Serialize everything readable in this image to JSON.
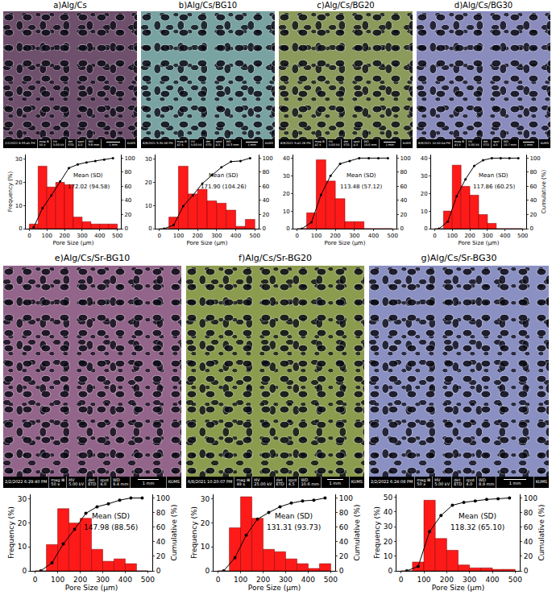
{
  "sem_header": [
    "mag ⊞",
    "HV",
    "det",
    "spot",
    "WD"
  ],
  "panels": [
    {
      "title": "a)Alg/Cs",
      "color": "#6e4f6c",
      "sem": {
        "timestamp": "2/2/2022 6:33:45 PM",
        "values": [
          "50 x",
          "5.00 kV",
          "ETD",
          "4.0",
          "9.8 mm"
        ],
        "scale": "1 mm",
        "org": "KUMS"
      }
    },
    {
      "title": "b)Alg/Cs/BG10",
      "color": "#79a3a3",
      "sem": {
        "timestamp": "6/8/2021 9:35:58 PM",
        "values": [
          "42 x",
          "5.00 kV",
          "ETD",
          "4.5",
          "10.3 mm"
        ],
        "scale": "1 mm",
        "org": "KUMS"
      }
    },
    {
      "title": "c)Alg/Cs/BG20",
      "color": "#8c9a5c",
      "sem": {
        "timestamp": "6/8/2021 9:42:26 PM",
        "values": [
          "42 x",
          "5.00 kV",
          "ETD",
          "4.5",
          "10.0 mm"
        ],
        "scale": "1 mm",
        "org": "KUMS"
      }
    },
    {
      "title": "d)Alg/Cs/BG30",
      "color": "#8a8cbd",
      "sem": {
        "timestamp": "6/8/2021 10:50:04 PM",
        "values": [
          "41 x",
          "5.00 kV",
          "ETD",
          "4.5",
          "10.7 mm"
        ],
        "scale": "1 mm",
        "org": "KUMS"
      }
    },
    {
      "title": "e)Alg/Cs/Sr-BG10",
      "color": "#93658a",
      "sem": {
        "timestamp": "2/2/2022 6:29:40 PM",
        "values": [
          "50 x",
          "5.00 kV",
          "ETD",
          "4.0",
          "9.4 mm"
        ],
        "scale": "1 mm",
        "org": "KUMS"
      }
    },
    {
      "title": "f)Alg/Cs/Sr-BG20",
      "color": "#8c9c4e",
      "sem": {
        "timestamp": "6/8/2021 10:20:07 PM",
        "values": [
          "49 x",
          "25.00 kV",
          "ETD",
          "4.5",
          "10.6 mm"
        ],
        "scale": "1 mm",
        "org": "KUMS"
      }
    },
    {
      "title": "g)Alg/Cs/Sr-BG30",
      "color": "#8a90c2",
      "sem": {
        "timestamp": "2/2/2022 6:24:08 PM",
        "values": [
          "50 x",
          "5.00 kV",
          "ETD",
          "4.0",
          "8.9 mm"
        ],
        "scale": "1 mm",
        "org": "KUMS"
      }
    }
  ],
  "chart_data": [
    {
      "type": "histogram",
      "bins": [
        0,
        50,
        100,
        150,
        200,
        250,
        300,
        350,
        400,
        450,
        500
      ],
      "values": [
        2,
        27,
        18,
        20,
        19,
        5,
        3,
        2,
        2,
        2
      ],
      "color": "#ff1a1a",
      "cumulative": {
        "type": "line",
        "axis": "y2",
        "marker": "circle",
        "color": "#000000",
        "values": [
          2,
          29,
          47,
          67,
          86,
          91,
          94,
          96,
          98,
          100
        ]
      },
      "xlabel": "Pore Size (µm)",
      "ylabel": "Frequency (%)",
      "xlim": [
        -20,
        520
      ],
      "xticks": [
        0,
        100,
        200,
        300,
        400,
        500
      ],
      "ylim": [
        0,
        32
      ],
      "yticks": [
        0,
        10,
        20,
        30
      ],
      "y2lim": [
        0,
        105
      ],
      "y2ticks": [
        0,
        20,
        40,
        60,
        80,
        100
      ],
      "annotations": [
        "Mean (SD)",
        "172.02 (94.58)"
      ]
    },
    {
      "type": "histogram",
      "bins": [
        0,
        50,
        100,
        150,
        200,
        250,
        300,
        350,
        400,
        450,
        500
      ],
      "values": [
        0,
        5,
        27,
        15,
        17,
        12,
        11,
        8,
        1,
        4
      ],
      "color": "#ff1a1a",
      "cumulative": {
        "type": "line",
        "axis": "y2",
        "marker": "circle",
        "color": "#000000",
        "values": [
          0,
          5,
          32,
          47,
          64,
          76,
          87,
          95,
          96,
          100
        ]
      },
      "xlabel": "Pore Size (µm)",
      "xlim": [
        -20,
        520
      ],
      "xticks": [
        0,
        100,
        200,
        300,
        400,
        500
      ],
      "ylim": [
        0,
        32
      ],
      "yticks": [
        0,
        10,
        20,
        30
      ],
      "y2lim": [
        0,
        105
      ],
      "y2ticks": [
        0,
        20,
        40,
        60,
        80,
        100
      ],
      "annotations": [
        "Mean (SD)",
        "171.90 (104.26)"
      ]
    },
    {
      "type": "histogram",
      "bins": [
        0,
        50,
        100,
        150,
        200,
        250,
        300,
        350,
        400,
        450,
        500
      ],
      "values": [
        0,
        9,
        39,
        27,
        17,
        4,
        4,
        0,
        0,
        0
      ],
      "color": "#ff1a1a",
      "cumulative": {
        "type": "line",
        "axis": "y2",
        "marker": "circle",
        "color": "#000000",
        "values": [
          0,
          9,
          48,
          75,
          92,
          96,
          100,
          100,
          100,
          100
        ]
      },
      "xlabel": "Pore Size (µm)",
      "xlim": [
        -20,
        520
      ],
      "xticks": [
        0,
        100,
        200,
        300,
        400,
        500
      ],
      "ylim": [
        0,
        42
      ],
      "yticks": [
        0,
        10,
        20,
        30,
        40
      ],
      "y2lim": [
        0,
        105
      ],
      "y2ticks": [
        0,
        20,
        40,
        60,
        80,
        100
      ],
      "annotations": [
        "Mean (SD)",
        "113.48 (57.12)"
      ]
    },
    {
      "type": "histogram",
      "bins": [
        0,
        50,
        100,
        150,
        200,
        250,
        300,
        350,
        400,
        450,
        500
      ],
      "values": [
        0,
        10,
        36,
        24,
        19,
        8,
        3,
        0,
        0,
        0
      ],
      "color": "#ff1a1a",
      "cumulative": {
        "type": "line",
        "axis": "y2",
        "marker": "circle",
        "color": "#000000",
        "values": [
          0,
          10,
          46,
          70,
          89,
          97,
          100,
          100,
          100,
          100
        ]
      },
      "xlabel": "Pore Size (µm)",
      "y2label": "Cumulative (%)",
      "xlim": [
        -20,
        520
      ],
      "xticks": [
        0,
        100,
        200,
        300,
        400,
        500
      ],
      "ylim": [
        0,
        42
      ],
      "yticks": [
        0,
        10,
        20,
        30,
        40
      ],
      "y2lim": [
        0,
        105
      ],
      "y2ticks": [
        0,
        20,
        40,
        60,
        80,
        100
      ],
      "annotations": [
        "Mean (SD)",
        "117.86 (60.25)"
      ]
    },
    {
      "type": "histogram",
      "bins": [
        0,
        50,
        100,
        150,
        200,
        250,
        300,
        350,
        400,
        450,
        500
      ],
      "values": [
        0,
        11,
        26,
        20,
        22,
        9,
        4,
        5,
        3,
        0
      ],
      "color": "#ff1a1a",
      "cumulative": {
        "type": "line",
        "axis": "y2",
        "marker": "circle",
        "color": "#000000",
        "values": [
          0,
          11,
          37,
          57,
          79,
          88,
          92,
          97,
          100,
          100
        ]
      },
      "xlabel": "Pore Size (µm)",
      "ylabel": "Frequency (%)",
      "y2label": "Cumulative (%)",
      "xlim": [
        -20,
        520
      ],
      "xticks": [
        0,
        100,
        200,
        300,
        400,
        500
      ],
      "ylim": [
        0,
        32
      ],
      "yticks": [
        0,
        10,
        20,
        30
      ],
      "y2lim": [
        0,
        105
      ],
      "y2ticks": [
        0,
        20,
        40,
        60,
        80,
        100
      ],
      "annotations": [
        "Mean (SD)",
        "147.98 (88.56)"
      ]
    },
    {
      "type": "histogram",
      "bins": [
        0,
        50,
        100,
        150,
        200,
        250,
        300,
        350,
        400,
        450,
        500
      ],
      "values": [
        0,
        18,
        31,
        22,
        9,
        8,
        5,
        3,
        1,
        3
      ],
      "color": "#ff1a1a",
      "cumulative": {
        "type": "line",
        "axis": "y2",
        "marker": "circle",
        "color": "#000000",
        "values": [
          0,
          18,
          49,
          71,
          80,
          88,
          93,
          96,
          97,
          100
        ]
      },
      "xlabel": "Pore Size (µm)",
      "ylabel": "Frequency (%)",
      "y2label": "Cumulative (%)",
      "xlim": [
        -20,
        520
      ],
      "xticks": [
        0,
        100,
        200,
        300,
        400,
        500
      ],
      "ylim": [
        0,
        32
      ],
      "yticks": [
        0,
        10,
        20,
        30
      ],
      "y2lim": [
        0,
        105
      ],
      "y2ticks": [
        0,
        20,
        40,
        60,
        80,
        100
      ],
      "annotations": [
        "Mean (SD)",
        "131.31 (93.73)"
      ]
    },
    {
      "type": "histogram",
      "bins": [
        0,
        50,
        100,
        150,
        200,
        250,
        300,
        350,
        400,
        450,
        500
      ],
      "values": [
        0,
        6,
        48,
        22,
        14,
        4,
        2,
        2,
        1,
        1
      ],
      "color": "#ff1a1a",
      "cumulative": {
        "type": "line",
        "axis": "y2",
        "marker": "circle",
        "color": "#000000",
        "values": [
          0,
          6,
          54,
          76,
          90,
          94,
          96,
          98,
          99,
          100
        ]
      },
      "xlabel": "Pore Size (µm)",
      "ylabel": "Frequency (%)",
      "y2label": "Cumulative (%)",
      "xlim": [
        -20,
        520
      ],
      "xticks": [
        0,
        100,
        200,
        300,
        400,
        500
      ],
      "ylim": [
        0,
        52
      ],
      "yticks": [
        0,
        10,
        20,
        30,
        40,
        50
      ],
      "y2lim": [
        0,
        105
      ],
      "y2ticks": [
        0,
        20,
        40,
        60,
        80,
        100
      ],
      "annotations": [
        "Mean (SD)",
        "118.32 (65.10)"
      ]
    }
  ]
}
